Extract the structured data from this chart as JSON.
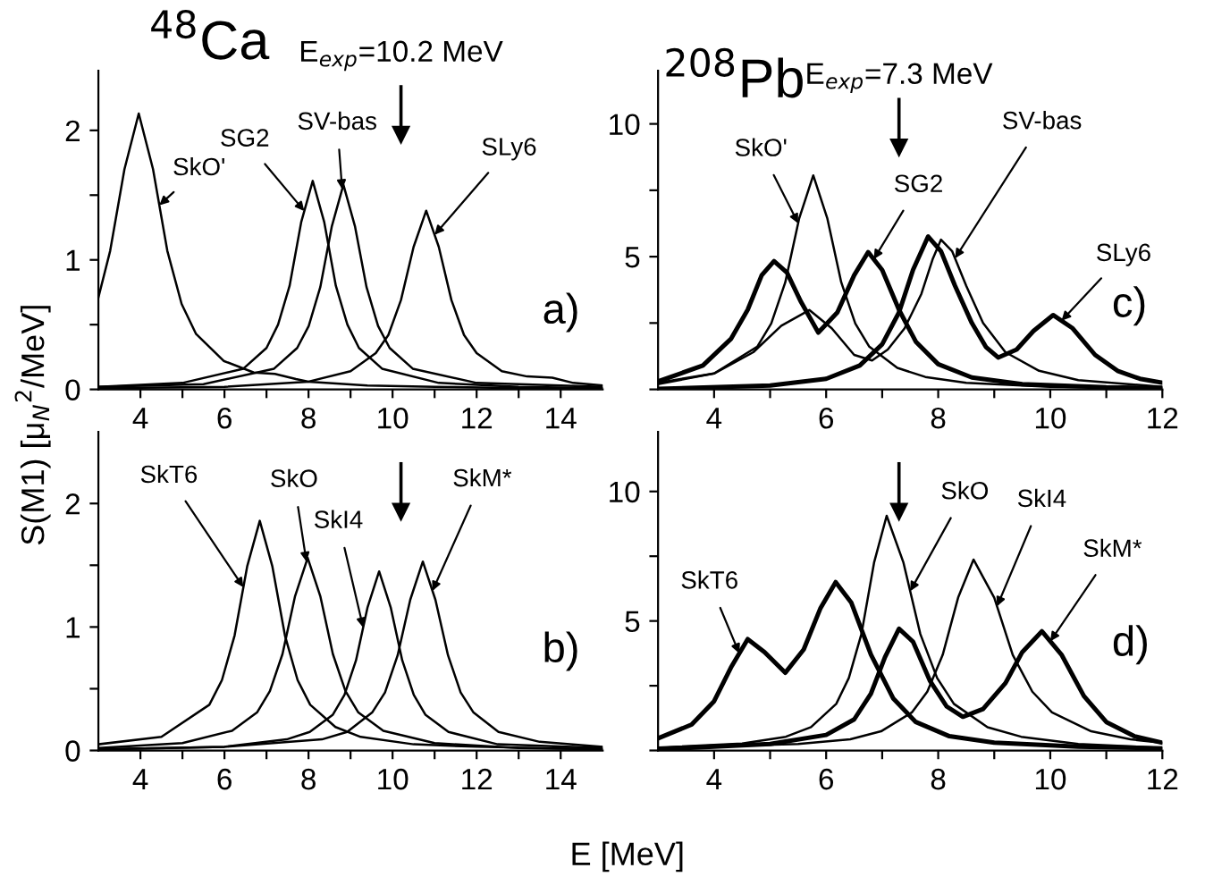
{
  "chart_data": [
    {
      "type": "line",
      "ylabel": "S(M1) [μ$_{N}$$^{2}$/MeV]",
      "xlim": [
        3,
        15
      ],
      "ylim": [
        0,
        2.46
      ],
      "xticks": [
        4,
        {
          "value": 5,
          "label": null
        },
        6,
        {
          "value": 7,
          "label": null
        },
        8,
        {
          "value": 9,
          "label": null
        },
        10,
        {
          "value": 11,
          "label": null
        },
        12,
        {
          "value": 13,
          "label": null
        },
        14
      ],
      "yticks": [
        0,
        {
          "value": 0.5,
          "label": null
        },
        1,
        {
          "value": 1.5,
          "label": null
        },
        2
      ],
      "annotations": [
        "$^{48}$Ca",
        "a)"
      ],
      "ref_lines": [
        {
          "axis": "x",
          "value": 10.2,
          "label": "E$_{exp}$=10.2 MeV"
        }
      ],
      "series": [
        {
          "name": "SkO'",
          "color": "#000000",
          "x": [
            3,
            3.28,
            3.62,
            3.96,
            4.3,
            4.64,
            4.98,
            5.32,
            5.98,
            6.7,
            7.2,
            7.7,
            8,
            9.4,
            11,
            13,
            15
          ],
          "values": [
            0.71,
            1.07,
            1.7,
            2.13,
            1.7,
            1.07,
            0.66,
            0.43,
            0.22,
            0.13,
            0.12,
            0.08,
            0.06,
            0.03,
            0.02,
            0.01,
            0.01
          ]
        },
        {
          "name": "SG2",
          "color": "#000000",
          "x": [
            3,
            5,
            6.45,
            7,
            7.275,
            7.55,
            7.825,
            8.1,
            8.375,
            8.65,
            8.925,
            9.2,
            9.75,
            11.1,
            13,
            15
          ],
          "values": [
            0.02,
            0.05,
            0.16,
            0.32,
            0.5,
            0.8,
            1.29,
            1.61,
            1.29,
            0.8,
            0.5,
            0.32,
            0.16,
            0.05,
            0.02,
            0.01
          ]
        },
        {
          "name": "SV-bas",
          "color": "#000000",
          "x": [
            3,
            5.5,
            7.18,
            7.73,
            8.005,
            8.28,
            8.555,
            8.83,
            9.105,
            9.38,
            9.655,
            9.93,
            10.48,
            12,
            15
          ],
          "values": [
            0.02,
            0.04,
            0.16,
            0.32,
            0.49,
            0.79,
            1.26,
            1.58,
            1.26,
            0.79,
            0.49,
            0.32,
            0.16,
            0.05,
            0.02
          ]
        },
        {
          "name": "SLy6",
          "color": "#000000",
          "x": [
            3,
            6,
            8,
            9,
            9.6,
            9.9,
            10.2,
            10.5,
            10.8,
            11.1,
            11.4,
            11.7,
            12,
            12.6,
            13.2,
            13.8,
            14.3,
            15
          ],
          "values": [
            0.01,
            0.02,
            0.06,
            0.14,
            0.28,
            0.42,
            0.69,
            1.1,
            1.38,
            1.1,
            0.69,
            0.42,
            0.28,
            0.14,
            0.1,
            0.09,
            0.05,
            0.03
          ]
        }
      ]
    },
    {
      "type": "line",
      "xlim": [
        3,
        12
      ],
      "ylim": [
        0,
        12
      ],
      "xticks": [
        4,
        {
          "value": 5,
          "label": null
        },
        6,
        {
          "value": 7,
          "label": null
        },
        8,
        {
          "value": 9,
          "label": null
        },
        10,
        {
          "value": 11,
          "label": null
        },
        12
      ],
      "yticks": [
        {
          "value": 0,
          "label": null
        },
        {
          "value": 2.5,
          "label": null
        },
        5,
        {
          "value": 7.5,
          "label": null
        },
        10
      ],
      "annotations": [
        "$^{208}$Pb",
        "c)"
      ],
      "ref_lines": [
        {
          "axis": "x",
          "value": 7.3,
          "label": "E$_{exp}$=7.3 MeV"
        }
      ],
      "series": [
        {
          "name": "SkO'",
          "color": "#000000",
          "x": [
            3,
            4,
            4.77,
            5.02,
            5.27,
            5.52,
            5.77,
            6.02,
            6.27,
            6.52,
            6.77,
            7.27,
            7.77,
            8.5,
            10,
            12
          ],
          "values": [
            0.25,
            0.6,
            1.61,
            2.48,
            4.03,
            6.45,
            8.06,
            6.45,
            4.03,
            2.48,
            1.61,
            0.81,
            0.47,
            0.25,
            0.1,
            0.05
          ]
        },
        {
          "name": "SG2",
          "color": "#000000",
          "x": [
            3,
            3.8,
            4.3,
            4.6,
            4.85,
            5.07,
            5.3,
            5.55,
            5.86,
            6.2,
            6.5,
            6.75,
            7,
            7.3,
            7.6,
            8,
            8.6,
            9.5,
            11,
            12
          ],
          "values": [
            0.3,
            0.9,
            1.9,
            3,
            4.3,
            4.83,
            4.4,
            3.3,
            2.14,
            2.9,
            4.3,
            5.17,
            4.5,
            3,
            1.8,
            0.95,
            0.45,
            0.2,
            0.08,
            0.05
          ]
        },
        {
          "name": "SV-bas",
          "color": "#000000",
          "x": [
            3,
            4,
            4.7,
            5.2,
            5.7,
            6.1,
            6.5,
            6.82,
            7.1,
            7.4,
            7.7,
            7.9,
            8.05,
            8.25,
            8.5,
            8.8,
            9.2,
            9.8,
            10.5,
            12
          ],
          "values": [
            0.2,
            0.6,
            1.4,
            2.4,
            2.99,
            2.3,
            1.3,
            1.09,
            1.5,
            2.3,
            3.6,
            4.9,
            5.64,
            5.2,
            3.9,
            2.5,
            1.4,
            0.7,
            0.35,
            0.1
          ]
        },
        {
          "name": "SLy6",
          "color": "#000000",
          "x": [
            3,
            5,
            6,
            6.6,
            7,
            7.3,
            7.55,
            7.82,
            8.05,
            8.3,
            8.6,
            8.85,
            9.07,
            9.4,
            9.7,
            10.05,
            10.4,
            10.8,
            11.2,
            11.6,
            12
          ],
          "values": [
            0.02,
            0.15,
            0.4,
            0.9,
            1.7,
            2.9,
            4.5,
            5.76,
            5.2,
            3.9,
            2.5,
            1.6,
            1.2,
            1.5,
            2.2,
            2.8,
            2.3,
            1.3,
            0.7,
            0.4,
            0.25
          ]
        }
      ]
    },
    {
      "type": "line",
      "xlabel": "E [MeV]",
      "xlim": [
        3,
        15
      ],
      "ylim": [
        0,
        2.58
      ],
      "xticks": [
        4,
        {
          "value": 5,
          "label": null
        },
        6,
        {
          "value": 7,
          "label": null
        },
        8,
        {
          "value": 9,
          "label": null
        },
        10,
        {
          "value": 11,
          "label": null
        },
        12,
        {
          "value": 13,
          "label": null
        },
        14
      ],
      "yticks": [
        0,
        {
          "value": 0.5,
          "label": null
        },
        1,
        {
          "value": 1.5,
          "label": null
        },
        2
      ],
      "annotations": [
        "b)"
      ],
      "ref_lines": [
        {
          "axis": "x",
          "value": 10.2
        }
      ],
      "series": [
        {
          "name": "SkT6",
          "color": "#000000",
          "x": [
            3,
            4.5,
            5.64,
            5.94,
            6.24,
            6.54,
            6.84,
            7.14,
            7.44,
            7.74,
            8.04,
            8.64,
            9.24,
            10.5,
            12,
            15
          ],
          "values": [
            0.05,
            0.11,
            0.37,
            0.57,
            0.93,
            1.49,
            1.86,
            1.49,
            0.93,
            0.57,
            0.37,
            0.19,
            0.11,
            0.05,
            0.03,
            0.01
          ]
        },
        {
          "name": "SkO",
          "color": "#000000",
          "x": [
            3,
            5,
            6.18,
            6.78,
            7.08,
            7.38,
            7.68,
            7.98,
            8.28,
            8.58,
            8.88,
            9.18,
            9.78,
            11,
            13,
            15
          ],
          "values": [
            0.02,
            0.06,
            0.16,
            0.31,
            0.48,
            0.78,
            1.25,
            1.56,
            1.25,
            0.78,
            0.48,
            0.31,
            0.16,
            0.06,
            0.02,
            0.01
          ]
        },
        {
          "name": "SkI4",
          "color": "#000000",
          "x": [
            3,
            6,
            7.48,
            8.03,
            8.58,
            8.855,
            9.13,
            9.405,
            9.68,
            9.955,
            10.23,
            10.505,
            10.78,
            11.33,
            12.5,
            15
          ],
          "values": [
            0.01,
            0.03,
            0.09,
            0.15,
            0.29,
            0.45,
            0.73,
            1.16,
            1.45,
            1.16,
            0.73,
            0.45,
            0.29,
            0.15,
            0.05,
            0.02
          ]
        },
        {
          "name": "SkM*",
          "color": "#000000",
          "x": [
            3,
            6,
            8.32,
            8.92,
            9.52,
            9.82,
            10.12,
            10.42,
            10.72,
            11.02,
            11.32,
            11.62,
            11.92,
            12.52,
            13.5,
            15
          ],
          "values": [
            0.01,
            0.03,
            0.09,
            0.15,
            0.31,
            0.47,
            0.77,
            1.22,
            1.53,
            1.22,
            0.77,
            0.47,
            0.31,
            0.15,
            0.07,
            0.03
          ]
        }
      ]
    },
    {
      "type": "line",
      "xlim": [
        3,
        12
      ],
      "ylim": [
        0,
        12.3
      ],
      "xticks": [
        4,
        {
          "value": 5,
          "label": null
        },
        6,
        {
          "value": 7,
          "label": null
        },
        8,
        {
          "value": 9,
          "label": null
        },
        10,
        {
          "value": 11,
          "label": null
        },
        12
      ],
      "yticks": [
        {
          "value": 0,
          "label": null
        },
        {
          "value": 2.5,
          "label": null
        },
        5,
        {
          "value": 7.5,
          "label": null
        },
        10
      ],
      "annotations": [
        "d)"
      ],
      "ref_lines": [
        {
          "axis": "x",
          "value": 7.3
        }
      ],
      "series": [
        {
          "name": "SkT6",
          "color": "#000000",
          "x": [
            3,
            3.6,
            4,
            4.3,
            4.6,
            4.9,
            5.27,
            5.6,
            5.9,
            6.17,
            6.45,
            6.8,
            7.2,
            7.6,
            8.2,
            9,
            10.5,
            12
          ],
          "values": [
            0.47,
            1,
            1.9,
            3.2,
            4.3,
            3.8,
            3,
            3.9,
            5.5,
            6.5,
            5.7,
            3.7,
            2,
            1.1,
            0.55,
            0.3,
            0.15,
            0.08
          ]
        },
        {
          "name": "SkO",
          "color": "#000000",
          "x": [
            3,
            4.5,
            5.28,
            5.73,
            6.18,
            6.405,
            6.63,
            6.855,
            7.08,
            7.38,
            7.68,
            7.98,
            8.28,
            8.88,
            9.48,
            10.5,
            12
          ],
          "values": [
            0.11,
            0.27,
            0.53,
            0.9,
            1.8,
            2.8,
            4.5,
            7.25,
            9.06,
            7.25,
            4.5,
            2.8,
            1.8,
            0.9,
            0.53,
            0.25,
            0.1
          ]
        },
        {
          "name": "SkI4",
          "color": "#000000",
          "x": [
            3,
            5.5,
            6.43,
            6.98,
            7.53,
            7.805,
            8.08,
            8.355,
            8.63,
            9,
            9.33,
            9.68,
            10.03,
            10.73,
            11.43,
            12
          ],
          "values": [
            0.1,
            0.25,
            0.43,
            0.74,
            1.47,
            2.27,
            3.69,
            5.9,
            7.37,
            5.9,
            3.69,
            2.27,
            1.47,
            0.74,
            0.43,
            0.3
          ]
        },
        {
          "name": "SkM*",
          "color": "#000000",
          "x": [
            3,
            5,
            6,
            6.5,
            6.8,
            7.05,
            7.3,
            7.55,
            7.85,
            8.15,
            8.44,
            8.8,
            9.2,
            9.5,
            9.85,
            10.2,
            10.6,
            11,
            11.5,
            12
          ],
          "values": [
            0.05,
            0.25,
            0.6,
            1.2,
            2.2,
            3.6,
            4.7,
            4.2,
            2.7,
            1.7,
            1.3,
            1.6,
            2.6,
            3.8,
            4.6,
            3.7,
            2.1,
            1.1,
            0.55,
            0.3
          ]
        }
      ]
    }
  ]
}
